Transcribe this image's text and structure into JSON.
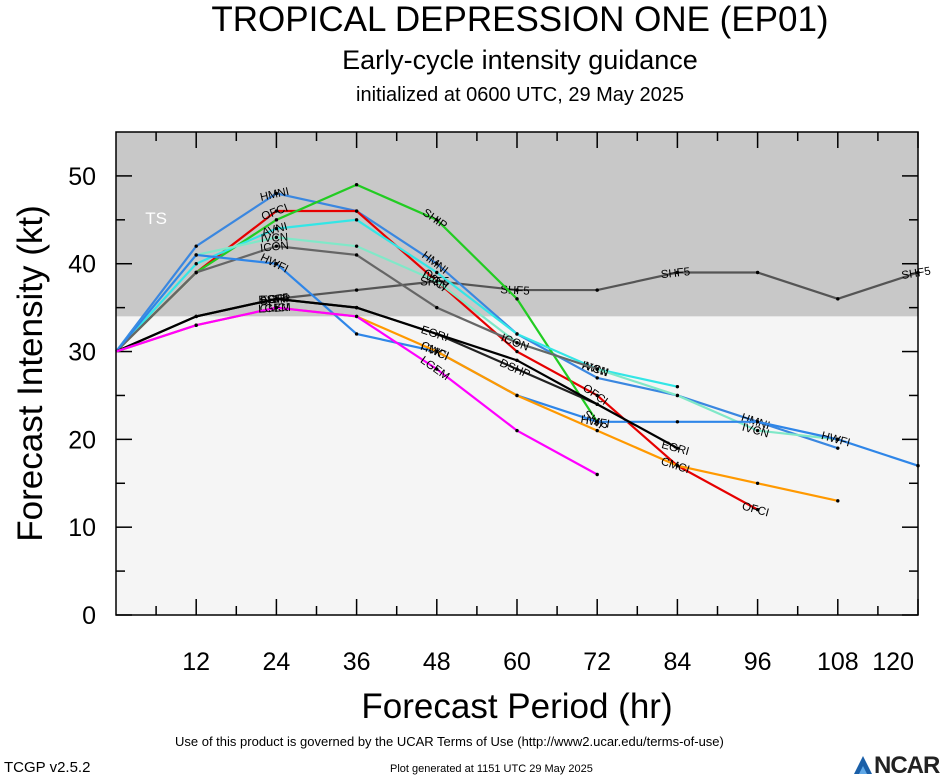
{
  "title": "TROPICAL DEPRESSION ONE (EP01)",
  "subtitle": "Early-cycle intensity guidance",
  "subtitle2": "initialized at 0600 UTC, 29 May 2025",
  "footer": {
    "terms": "Use of this product is governed by the UCAR Terms of Use (http://www2.ucar.edu/terms-of-use)",
    "version": "TCGP v2.5.2",
    "generated": "Plot generated at 1151 UTC   29 May 2025",
    "logo": "NCAR"
  },
  "chart_data": {
    "type": "line",
    "xlabel": "Forecast Period (hr)",
    "ylabel": "Forecast Intensity (kt)",
    "xlim": [
      0,
      120
    ],
    "ylim": [
      0,
      55
    ],
    "xticks": [
      12,
      24,
      36,
      48,
      60,
      72,
      84,
      96,
      108,
      120
    ],
    "yticks": [
      0,
      10,
      20,
      30,
      40,
      50
    ],
    "ts_threshold": 34,
    "ts_label": "TS",
    "colors": {
      "ts_band": "#c8c8c8",
      "below_band": "#f5f5f5"
    },
    "series": [
      {
        "name": "SHF5",
        "color": "#555555",
        "label_at": [
          24,
          48,
          60,
          84,
          120
        ],
        "x": [
          0,
          12,
          24,
          36,
          48,
          60,
          72,
          84,
          96,
          108,
          120
        ],
        "y": [
          30,
          34,
          36,
          37,
          38,
          37,
          37,
          39,
          39,
          36,
          39
        ]
      },
      {
        "name": "HMNI",
        "color": "#3a87e0",
        "label_at": [
          24,
          48,
          96
        ],
        "x": [
          0,
          12,
          24,
          36,
          48,
          60,
          72,
          84,
          96,
          108
        ],
        "y": [
          30,
          42,
          48,
          46,
          40,
          32,
          27,
          25,
          22,
          19
        ]
      },
      {
        "name": "OFCI",
        "color": "#e60000",
        "label_at": [
          24,
          48,
          72,
          96
        ],
        "x": [
          0,
          12,
          24,
          36,
          48,
          60,
          72,
          84,
          96
        ],
        "y": [
          30,
          39,
          46,
          46,
          38,
          30,
          25,
          17,
          12
        ]
      },
      {
        "name": "SHIP",
        "color": "#22cc22",
        "label_at": [
          48,
          72
        ],
        "x": [
          0,
          12,
          24,
          36,
          48,
          60,
          72
        ],
        "y": [
          30,
          39,
          45,
          49,
          45,
          36,
          22
        ]
      },
      {
        "name": "AVNI",
        "color": "#33e6e6",
        "label_at": [
          24,
          72
        ],
        "x": [
          0,
          12,
          24,
          36,
          48,
          60,
          72,
          84
        ],
        "y": [
          30,
          40,
          44,
          45,
          39,
          32,
          28,
          26
        ]
      },
      {
        "name": "IVCN",
        "color": "#80e8c8",
        "label_at": [
          24,
          48,
          72,
          96
        ],
        "x": [
          0,
          12,
          24,
          36,
          48,
          60,
          72,
          84,
          96,
          108
        ],
        "y": [
          30,
          41,
          43,
          42,
          38,
          31,
          28,
          25,
          21,
          20
        ]
      },
      {
        "name": "ICON",
        "color": "#666666",
        "label_at": [
          24,
          60
        ],
        "x": [
          0,
          12,
          24,
          36,
          48,
          60,
          72
        ],
        "y": [
          30,
          39,
          42,
          41,
          35,
          31,
          28
        ]
      },
      {
        "name": "HWFI",
        "color": "#2f86e8",
        "label_at": [
          24,
          48,
          72,
          108
        ],
        "x": [
          0,
          12,
          24,
          36,
          48,
          60,
          72,
          84,
          96,
          108,
          120
        ],
        "y": [
          30,
          41,
          40,
          32,
          30,
          25,
          22,
          22,
          22,
          20,
          17
        ]
      },
      {
        "name": "DSHP",
        "color": "#222222",
        "label_at": [
          24,
          60
        ],
        "x": [
          0,
          12,
          24,
          36,
          48,
          60,
          72
        ],
        "y": [
          30,
          34,
          36,
          35,
          32,
          28,
          24
        ]
      },
      {
        "name": "EGRI",
        "color": "#000000",
        "label_at": [
          24,
          48,
          84
        ],
        "x": [
          0,
          12,
          24,
          36,
          48,
          60,
          72,
          84
        ],
        "y": [
          30,
          34,
          36,
          35,
          32,
          29,
          24,
          19
        ]
      },
      {
        "name": "CMCI",
        "color": "#ff9900",
        "label_at": [
          24,
          48,
          84
        ],
        "x": [
          0,
          12,
          24,
          36,
          48,
          60,
          72,
          84,
          96,
          108
        ],
        "y": [
          30,
          33,
          35,
          34,
          30,
          25,
          21,
          17,
          15,
          13
        ]
      },
      {
        "name": "LGEM",
        "color": "#ff00ff",
        "label_at": [
          24,
          48
        ],
        "x": [
          0,
          12,
          24,
          36,
          48,
          60,
          72
        ],
        "y": [
          30,
          33,
          35,
          34,
          28,
          21,
          16
        ]
      }
    ]
  }
}
